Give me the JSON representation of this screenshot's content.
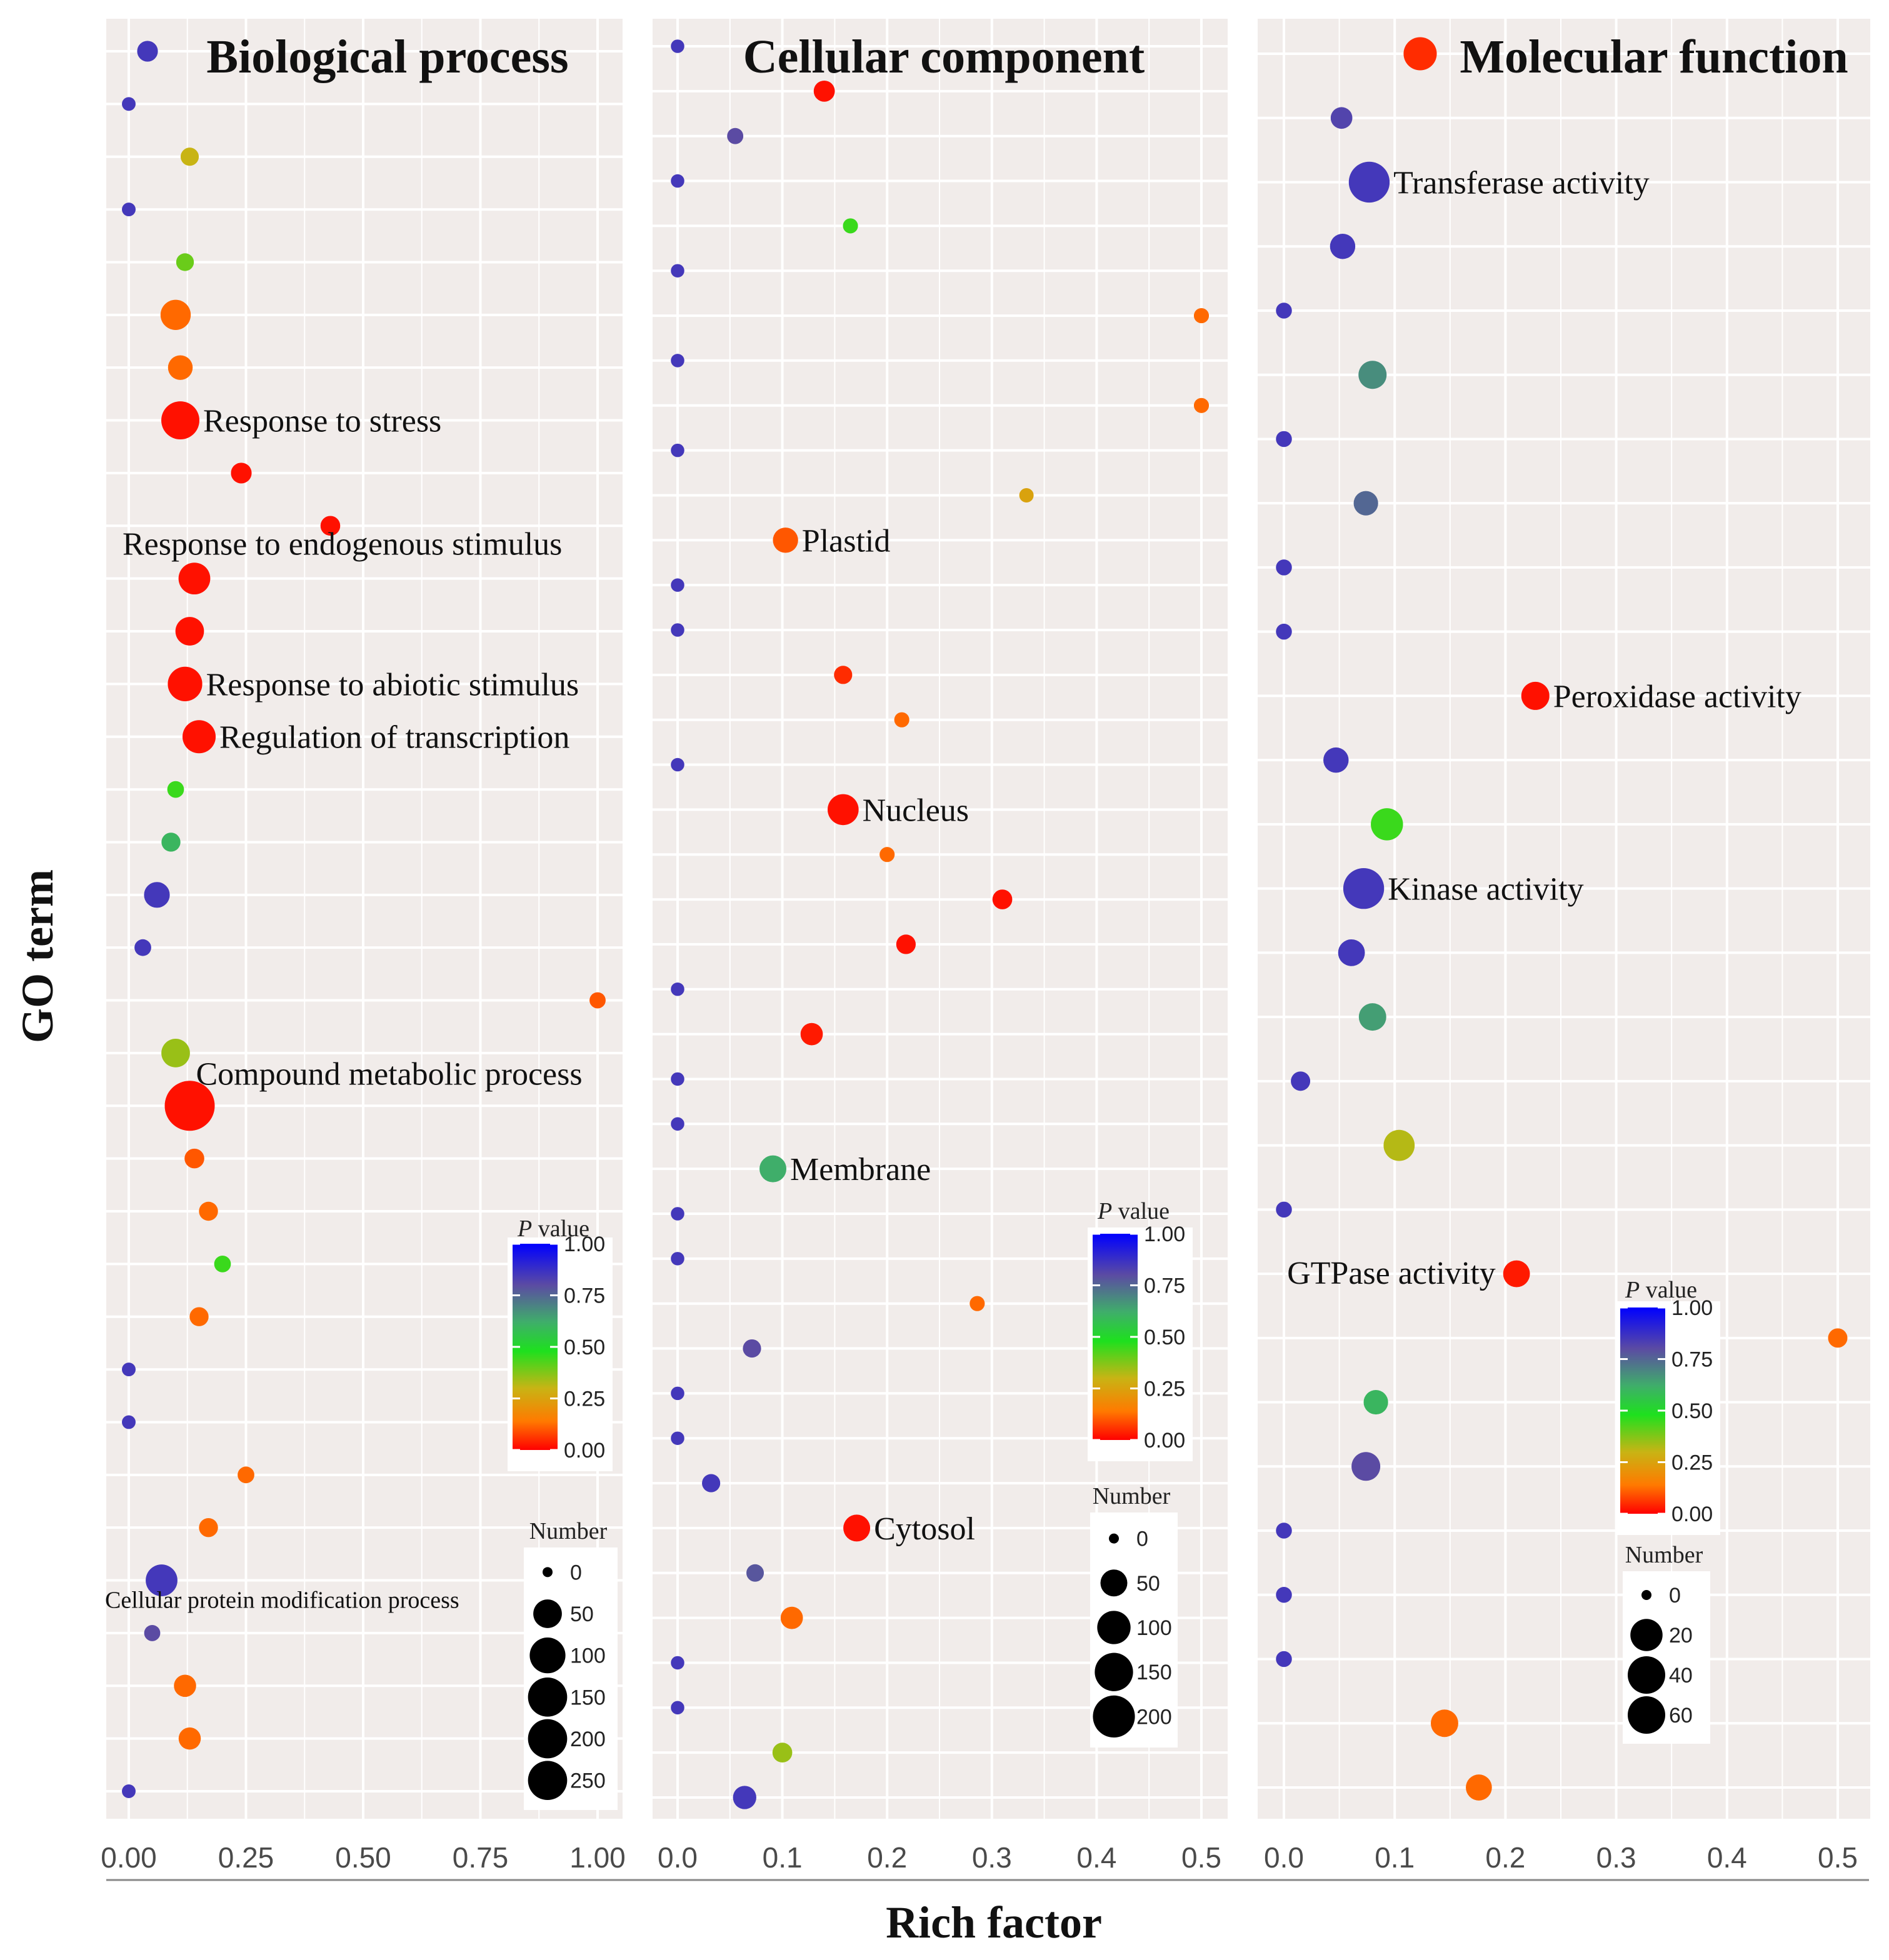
{
  "figure": {
    "x_axis_title": "Rich factor",
    "y_axis_title": "GO term"
  },
  "colorbar": {
    "title_italic": "P",
    "title_rest": " value",
    "ticks": [
      "1.00",
      "0.75",
      "0.50",
      "0.25",
      "0.00"
    ],
    "colors": [
      "#0000ff",
      "#5b4ba3",
      "#3fae6a",
      "#1ee01e",
      "#c8b414",
      "#ff7a00",
      "#ff0000"
    ]
  },
  "chart_data": [
    {
      "type": "scatter",
      "title": "Biological process",
      "xlabel": "Rich factor",
      "ylabel": "GO term",
      "xlim": [
        0,
        1
      ],
      "x_ticks": [
        "0.00",
        "0.25",
        "0.50",
        "0.75",
        "1.00"
      ],
      "x_tick_values": [
        0,
        0.25,
        0.5,
        0.75,
        1.0
      ],
      "size_legend": {
        "title": "Number",
        "values": [
          0,
          50,
          100,
          150,
          200,
          250
        ],
        "labels": [
          "0",
          "50",
          "100",
          "150",
          "200",
          "250"
        ]
      },
      "points": [
        {
          "x": 0.04,
          "number": 15,
          "p": 0.85
        },
        {
          "x": 0.0,
          "number": 1,
          "p": 0.85
        },
        {
          "x": 0.13,
          "number": 8,
          "p": 0.3
        },
        {
          "x": 0.0,
          "number": 1,
          "p": 0.85
        },
        {
          "x": 0.12,
          "number": 7,
          "p": 0.4
        },
        {
          "x": 0.1,
          "number": 60,
          "p": 0.12
        },
        {
          "x": 0.11,
          "number": 30,
          "p": 0.12
        },
        {
          "x": 0.11,
          "number": 120,
          "p": 0.02
        },
        {
          "x": 0.24,
          "number": 15,
          "p": 0.02
        },
        {
          "x": 0.43,
          "number": 12,
          "p": 0.02
        },
        {
          "x": 0.14,
          "number": 70,
          "p": 0.02
        },
        {
          "x": 0.13,
          "number": 50,
          "p": 0.02
        },
        {
          "x": 0.12,
          "number": 90,
          "p": 0.02
        },
        {
          "x": 0.15,
          "number": 80,
          "p": 0.02
        },
        {
          "x": 0.1,
          "number": 5,
          "p": 0.45
        },
        {
          "x": 0.09,
          "number": 10,
          "p": 0.6
        },
        {
          "x": 0.06,
          "number": 35,
          "p": 0.85
        },
        {
          "x": 0.03,
          "number": 5,
          "p": 0.85
        },
        {
          "x": 1.0,
          "number": 4,
          "p": 0.1
        },
        {
          "x": 0.1,
          "number": 50,
          "p": 0.35
        },
        {
          "x": 0.13,
          "number": 250,
          "p": 0.02
        },
        {
          "x": 0.14,
          "number": 12,
          "p": 0.1
        },
        {
          "x": 0.17,
          "number": 10,
          "p": 0.12
        },
        {
          "x": 0.2,
          "number": 5,
          "p": 0.45
        },
        {
          "x": 0.15,
          "number": 10,
          "p": 0.12
        },
        {
          "x": 0.0,
          "number": 1,
          "p": 0.85
        },
        {
          "x": 0.0,
          "number": 1,
          "p": 0.85
        },
        {
          "x": 0.25,
          "number": 5,
          "p": 0.12
        },
        {
          "x": 0.17,
          "number": 10,
          "p": 0.12
        },
        {
          "x": 0.07,
          "number": 70,
          "p": 0.85
        },
        {
          "x": 0.05,
          "number": 4,
          "p": 0.8
        },
        {
          "x": 0.12,
          "number": 20,
          "p": 0.12
        },
        {
          "x": 0.13,
          "number": 20,
          "p": 0.12
        },
        {
          "x": 0.0,
          "number": 1,
          "p": 0.85
        }
      ],
      "annotations": [
        {
          "point_index": 0,
          "text": "Biological process",
          "role": "title"
        },
        {
          "point_index": 7,
          "text": "Response to stress",
          "side": "right"
        },
        {
          "point_index": 10,
          "text": "Response to endogenous stimulus",
          "side": "above"
        },
        {
          "point_index": 12,
          "text": "Response to abiotic stimulus",
          "side": "right"
        },
        {
          "point_index": 13,
          "text": "Regulation of transcription",
          "side": "right"
        },
        {
          "point_index": 20,
          "text": "Compound metabolic process",
          "side": "above-right"
        },
        {
          "point_index": 29,
          "text": "Cellular protein modification process",
          "side": "below-left"
        }
      ]
    },
    {
      "type": "scatter",
      "title": "Cellular component",
      "xlabel": "Rich factor",
      "ylabel": "GO term",
      "xlim": [
        0,
        0.5
      ],
      "x_ticks": [
        "0.0",
        "0.1",
        "0.2",
        "0.3",
        "0.4",
        "0.5"
      ],
      "x_tick_values": [
        0,
        0.1,
        0.2,
        0.3,
        0.4,
        0.5
      ],
      "size_legend": {
        "title": "Number",
        "values": [
          0,
          50,
          100,
          150,
          200
        ],
        "labels": [
          "0",
          "50",
          "100",
          "150",
          "200"
        ]
      },
      "points": [
        {
          "x": 0.0,
          "number": 1,
          "p": 0.85
        },
        {
          "x": 0.14,
          "number": 20,
          "p": 0.02
        },
        {
          "x": 0.055,
          "number": 5,
          "p": 0.8
        },
        {
          "x": 0.0,
          "number": 1,
          "p": 0.85
        },
        {
          "x": 0.165,
          "number": 3,
          "p": 0.45
        },
        {
          "x": 0.0,
          "number": 1,
          "p": 0.85
        },
        {
          "x": 0.5,
          "number": 3,
          "p": 0.12
        },
        {
          "x": 0.0,
          "number": 1,
          "p": 0.85
        },
        {
          "x": 0.5,
          "number": 3,
          "p": 0.12
        },
        {
          "x": 0.0,
          "number": 1,
          "p": 0.85
        },
        {
          "x": 0.333,
          "number": 2,
          "p": 0.25
        },
        {
          "x": 0.103,
          "number": 40,
          "p": 0.1
        },
        {
          "x": 0.0,
          "number": 1,
          "p": 0.85
        },
        {
          "x": 0.0,
          "number": 1,
          "p": 0.85
        },
        {
          "x": 0.158,
          "number": 10,
          "p": 0.05
        },
        {
          "x": 0.214,
          "number": 3,
          "p": 0.12
        },
        {
          "x": 0.0,
          "number": 1,
          "p": 0.85
        },
        {
          "x": 0.158,
          "number": 80,
          "p": 0.02
        },
        {
          "x": 0.2,
          "number": 3,
          "p": 0.12
        },
        {
          "x": 0.31,
          "number": 15,
          "p": 0.02
        },
        {
          "x": 0.218,
          "number": 14,
          "p": 0.02
        },
        {
          "x": 0.0,
          "number": 1,
          "p": 0.85
        },
        {
          "x": 0.128,
          "number": 25,
          "p": 0.03
        },
        {
          "x": 0.0,
          "number": 1,
          "p": 0.85
        },
        {
          "x": 0.0,
          "number": 1,
          "p": 0.85
        },
        {
          "x": 0.091,
          "number": 50,
          "p": 0.62
        },
        {
          "x": 0.0,
          "number": 1,
          "p": 0.85
        },
        {
          "x": 0.0,
          "number": 1,
          "p": 0.85
        },
        {
          "x": 0.286,
          "number": 3,
          "p": 0.12
        },
        {
          "x": 0.071,
          "number": 10,
          "p": 0.8
        },
        {
          "x": 0.0,
          "number": 1,
          "p": 0.85
        },
        {
          "x": 0.0,
          "number": 1,
          "p": 0.85
        },
        {
          "x": 0.032,
          "number": 10,
          "p": 0.85
        },
        {
          "x": 0.171,
          "number": 50,
          "p": 0.02
        },
        {
          "x": 0.074,
          "number": 8,
          "p": 0.78
        },
        {
          "x": 0.109,
          "number": 25,
          "p": 0.12
        },
        {
          "x": 0.0,
          "number": 1,
          "p": 0.85
        },
        {
          "x": 0.0,
          "number": 1,
          "p": 0.85
        },
        {
          "x": 0.1,
          "number": 15,
          "p": 0.35
        },
        {
          "x": 0.064,
          "number": 30,
          "p": 0.85
        }
      ],
      "annotations": [
        {
          "point_index": 11,
          "text": "Plastid",
          "side": "right"
        },
        {
          "point_index": 17,
          "text": "Nucleus",
          "side": "right"
        },
        {
          "point_index": 25,
          "text": "Membrane",
          "side": "right"
        },
        {
          "point_index": 33,
          "text": "Cytosol",
          "side": "right"
        }
      ]
    },
    {
      "type": "scatter",
      "title": "Molecular function",
      "xlabel": "Rich factor",
      "ylabel": "GO term",
      "xlim": [
        0,
        0.5
      ],
      "x_ticks": [
        "0.0",
        "0.1",
        "0.2",
        "0.3",
        "0.4",
        "0.5"
      ],
      "x_tick_values": [
        0,
        0.1,
        0.2,
        0.3,
        0.4,
        0.5
      ],
      "size_legend": {
        "title": "Number",
        "values": [
          0,
          20,
          40,
          60
        ],
        "labels": [
          "0",
          "20",
          "40",
          "60"
        ]
      },
      "points": [
        {
          "x": 0.123,
          "number": 22,
          "p": 0.05
        },
        {
          "x": 0.052,
          "number": 5,
          "p": 0.82
        },
        {
          "x": 0.077,
          "number": 40,
          "p": 0.85
        },
        {
          "x": 0.053,
          "number": 9,
          "p": 0.85
        },
        {
          "x": 0.0,
          "number": 1,
          "p": 0.85
        },
        {
          "x": 0.08,
          "number": 13,
          "p": 0.68
        },
        {
          "x": 0.0,
          "number": 1,
          "p": 0.85
        },
        {
          "x": 0.074,
          "number": 8,
          "p": 0.75
        },
        {
          "x": 0.0,
          "number": 1,
          "p": 0.85
        },
        {
          "x": 0.0,
          "number": 1,
          "p": 0.85
        },
        {
          "x": 0.227,
          "number": 13,
          "p": 0.02
        },
        {
          "x": 0.047,
          "number": 9,
          "p": 0.85
        },
        {
          "x": 0.093,
          "number": 20,
          "p": 0.45
        },
        {
          "x": 0.072,
          "number": 40,
          "p": 0.85
        },
        {
          "x": 0.061,
          "number": 11,
          "p": 0.85
        },
        {
          "x": 0.08,
          "number": 12,
          "p": 0.65
        },
        {
          "x": 0.015,
          "number": 3,
          "p": 0.85
        },
        {
          "x": 0.104,
          "number": 18,
          "p": 0.32
        },
        {
          "x": 0.0,
          "number": 1,
          "p": 0.85
        },
        {
          "x": 0.21,
          "number": 11,
          "p": 0.03
        },
        {
          "x": 0.5,
          "number": 3,
          "p": 0.12
        },
        {
          "x": 0.083,
          "number": 8,
          "p": 0.6
        },
        {
          "x": 0.074,
          "number": 14,
          "p": 0.8
        },
        {
          "x": 0.0,
          "number": 1,
          "p": 0.85
        },
        {
          "x": 0.0,
          "number": 1,
          "p": 0.85
        },
        {
          "x": 0.0,
          "number": 1,
          "p": 0.85
        },
        {
          "x": 0.145,
          "number": 12,
          "p": 0.12
        },
        {
          "x": 0.176,
          "number": 10,
          "p": 0.12
        }
      ],
      "annotations": [
        {
          "point_index": 0,
          "text": "Molecular function",
          "role": "title"
        },
        {
          "point_index": 2,
          "text": "Transferase activity",
          "side": "right"
        },
        {
          "point_index": 10,
          "text": "Peroxidase activity",
          "side": "right"
        },
        {
          "point_index": 13,
          "text": "Kinase activity",
          "side": "right"
        },
        {
          "point_index": 19,
          "text": "GTPase activity",
          "side": "left"
        }
      ]
    }
  ]
}
